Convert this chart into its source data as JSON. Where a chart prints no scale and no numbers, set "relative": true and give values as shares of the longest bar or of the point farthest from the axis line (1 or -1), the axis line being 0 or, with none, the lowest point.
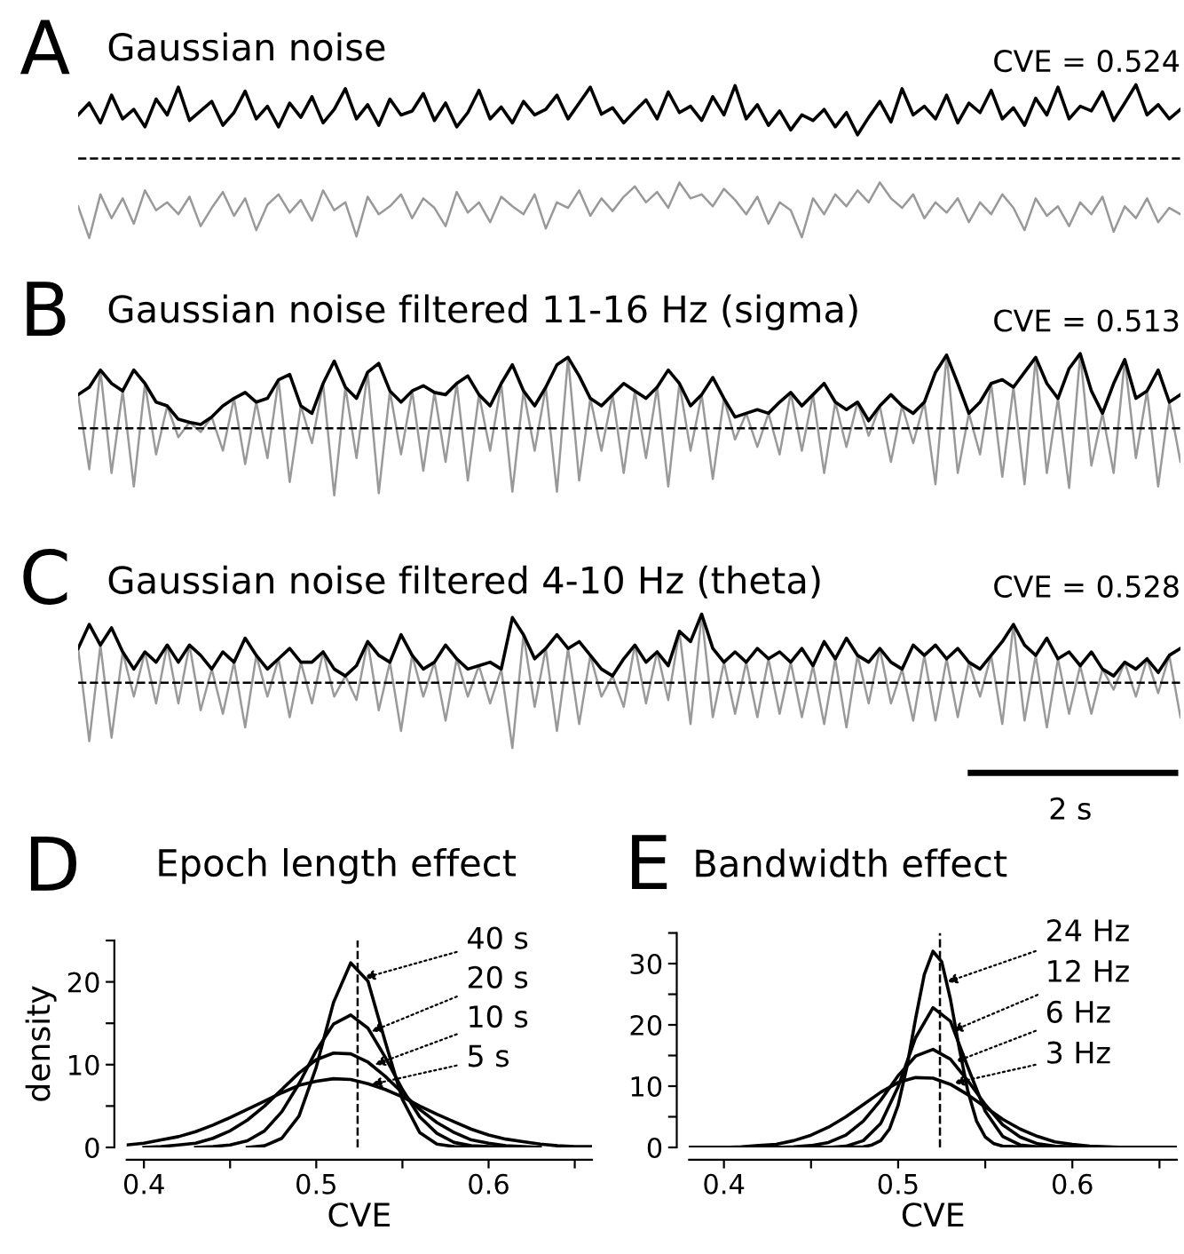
{
  "chart_data": [
    {
      "type": "line",
      "relative": true,
      "title": "Gaussian noise",
      "annotations": [
        "A",
        "CVE = 0.524"
      ],
      "categories": [
        null,
        null,
        null,
        null,
        null,
        null,
        null,
        null,
        null,
        null,
        null,
        null,
        null,
        null,
        null,
        null,
        null,
        null,
        null,
        null,
        null,
        null,
        null,
        null,
        null,
        null,
        null,
        null,
        null,
        null,
        null,
        null,
        null,
        null,
        null,
        null,
        null,
        null,
        null,
        null,
        null,
        null,
        null,
        null,
        null,
        null,
        null,
        null,
        null,
        null,
        null,
        null,
        null,
        null,
        null,
        null,
        null,
        null,
        null,
        null,
        null,
        null,
        null,
        null,
        null,
        null,
        null,
        null,
        null,
        null,
        null,
        null,
        null,
        null,
        null,
        null,
        null,
        null,
        null,
        null,
        null,
        null,
        null,
        null,
        null,
        null,
        null,
        null,
        null,
        null,
        null,
        null,
        null,
        null,
        null,
        null,
        null,
        null,
        null,
        null
      ],
      "ref_lines": [
        {
          "axis": "y",
          "value": 0,
          "line_style": "dashed",
          "color": "#000000"
        }
      ],
      "series": [
        {
          "color": "#999999",
          "values": [
            -0.6,
            -1.0,
            -0.45,
            -0.75,
            -0.5,
            -0.82,
            -0.4,
            -0.65,
            -0.55,
            -0.7,
            -0.48,
            -0.85,
            -0.62,
            -0.42,
            -0.72,
            -0.5,
            -0.9,
            -0.58,
            -0.45,
            -0.68,
            -0.52,
            -0.78,
            -0.4,
            -0.65,
            -0.55,
            -0.98,
            -0.48,
            -0.7,
            -0.6,
            -0.45,
            -0.75,
            -0.5,
            -0.62,
            -0.85,
            -0.42,
            -0.68,
            -0.55,
            -0.8,
            -0.48,
            -0.6,
            -0.7,
            -0.45,
            -0.88,
            -0.55,
            -0.62,
            -0.4,
            -0.72,
            -0.5,
            -0.66,
            -0.48,
            -0.35,
            -0.55,
            -0.42,
            -0.62,
            -0.3,
            -0.5,
            -0.45,
            -0.6,
            -0.38,
            -0.52,
            -0.7,
            -0.48,
            -0.82,
            -0.55,
            -0.65,
            -0.99,
            -0.5,
            -0.7,
            -0.45,
            -0.6,
            -0.4,
            -0.55,
            -0.3,
            -0.5,
            -0.62,
            -0.45,
            -0.75,
            -0.55,
            -0.68,
            -0.5,
            -0.8,
            -0.55,
            -0.7,
            -0.45,
            -0.62,
            -0.9,
            -0.5,
            -0.72,
            -0.6,
            -0.85,
            -0.55,
            -0.7,
            -0.48,
            -0.92,
            -0.6,
            -0.75,
            -0.5,
            -0.8,
            -0.62,
            -0.7
          ]
        },
        {
          "color": "#000000",
          "values": [
            0.55,
            0.7,
            0.45,
            0.8,
            0.5,
            0.62,
            0.4,
            0.75,
            0.55,
            0.9,
            0.48,
            0.6,
            0.72,
            0.42,
            0.58,
            0.85,
            0.5,
            0.66,
            0.4,
            0.7,
            0.52,
            0.78,
            0.45,
            0.62,
            0.88,
            0.5,
            0.68,
            0.42,
            0.75,
            0.55,
            0.6,
            0.82,
            0.48,
            0.7,
            0.4,
            0.58,
            0.86,
            0.5,
            0.65,
            0.45,
            0.72,
            0.55,
            0.62,
            0.8,
            0.5,
            0.7,
            0.9,
            0.56,
            0.64,
            0.45,
            0.6,
            0.74,
            0.5,
            0.84,
            0.58,
            0.66,
            0.48,
            0.78,
            0.55,
            0.92,
            0.5,
            0.68,
            0.42,
            0.6,
            0.36,
            0.55,
            0.48,
            0.62,
            0.4,
            0.58,
            0.3,
            0.52,
            0.72,
            0.46,
            0.88,
            0.55,
            0.66,
            0.5,
            0.8,
            0.45,
            0.7,
            0.58,
            0.86,
            0.5,
            0.64,
            0.42,
            0.76,
            0.55,
            0.9,
            0.5,
            0.66,
            0.6,
            0.84,
            0.48,
            0.7,
            0.93,
            0.55,
            0.68,
            0.5,
            0.62
          ]
        }
      ]
    },
    {
      "type": "line",
      "relative": true,
      "title": "Gaussian noise filtered 11-16 Hz (sigma)",
      "annotations": [
        "B",
        "CVE = 0.513"
      ],
      "categories": [
        null,
        null,
        null,
        null,
        null,
        null,
        null,
        null,
        null,
        null,
        null,
        null,
        null,
        null,
        null,
        null,
        null,
        null,
        null,
        null,
        null,
        null,
        null,
        null,
        null,
        null,
        null,
        null,
        null,
        null,
        null,
        null,
        null,
        null,
        null,
        null,
        null,
        null,
        null,
        null,
        null,
        null,
        null,
        null,
        null,
        null,
        null,
        null,
        null,
        null,
        null,
        null,
        null,
        null,
        null,
        null,
        null,
        null,
        null,
        null,
        null,
        null,
        null,
        null,
        null,
        null,
        null,
        null,
        null,
        null,
        null,
        null,
        null,
        null,
        null,
        null,
        null,
        null,
        null,
        null,
        null,
        null,
        null,
        null,
        null,
        null,
        null,
        null,
        null,
        null,
        null,
        null,
        null,
        null,
        null,
        null,
        null,
        null,
        null,
        null
      ],
      "ref_lines": [
        {
          "axis": "y",
          "value": 0,
          "line_style": "dashed",
          "color": "#000000"
        }
      ],
      "series": [
        {
          "color": "#999999",
          "values": [
            0.45,
            -0.55,
            0.78,
            -0.6,
            0.5,
            -0.78,
            0.6,
            -0.35,
            0.3,
            -0.12,
            0.08,
            -0.05,
            0.15,
            -0.3,
            0.4,
            -0.48,
            0.35,
            -0.4,
            0.65,
            -0.72,
            0.3,
            -0.2,
            0.6,
            -0.9,
            0.55,
            -0.4,
            0.75,
            -0.87,
            0.5,
            -0.35,
            0.5,
            -0.57,
            0.48,
            -0.45,
            0.6,
            -0.7,
            0.45,
            -0.3,
            0.6,
            -0.85,
            0.5,
            -0.3,
            0.55,
            -0.85,
            0.95,
            -0.7,
            0.4,
            -0.3,
            0.45,
            -0.6,
            0.5,
            -0.4,
            0.55,
            -0.78,
            0.6,
            -0.3,
            0.45,
            -0.68,
            0.4,
            -0.15,
            0.2,
            -0.25,
            0.2,
            -0.35,
            0.48,
            -0.3,
            0.45,
            -0.6,
            0.35,
            -0.25,
            0.35,
            -0.1,
            0.3,
            -0.45,
            0.3,
            -0.2,
            0.35,
            -0.75,
            0.98,
            -0.6,
            0.2,
            -0.35,
            0.6,
            -0.65,
            0.55,
            -0.75,
            0.95,
            -0.6,
            0.4,
            -0.8,
            1.0,
            -0.5,
            0.2,
            -0.6,
            0.92,
            -0.4,
            0.5,
            -0.78,
            0.35,
            -0.45
          ]
        },
        {
          "color": "#000000",
          "values": [
            0.45,
            0.55,
            0.78,
            0.6,
            0.5,
            0.78,
            0.6,
            0.35,
            0.3,
            0.12,
            0.08,
            0.05,
            0.15,
            0.3,
            0.4,
            0.48,
            0.35,
            0.4,
            0.65,
            0.72,
            0.3,
            0.2,
            0.6,
            0.9,
            0.55,
            0.4,
            0.75,
            0.87,
            0.5,
            0.35,
            0.5,
            0.57,
            0.48,
            0.45,
            0.6,
            0.7,
            0.45,
            0.3,
            0.6,
            0.85,
            0.5,
            0.3,
            0.55,
            0.85,
            0.95,
            0.7,
            0.4,
            0.3,
            0.45,
            0.6,
            0.5,
            0.4,
            0.55,
            0.78,
            0.6,
            0.3,
            0.45,
            0.68,
            0.4,
            0.15,
            0.2,
            0.25,
            0.2,
            0.35,
            0.48,
            0.3,
            0.45,
            0.6,
            0.35,
            0.25,
            0.35,
            0.1,
            0.3,
            0.45,
            0.3,
            0.2,
            0.35,
            0.75,
            0.98,
            0.6,
            0.2,
            0.35,
            0.6,
            0.65,
            0.55,
            0.75,
            0.95,
            0.6,
            0.4,
            0.8,
            1.0,
            0.5,
            0.2,
            0.6,
            0.92,
            0.4,
            0.5,
            0.78,
            0.35,
            0.45
          ]
        }
      ]
    },
    {
      "type": "line",
      "relative": true,
      "title": "Gaussian noise filtered 4-10 Hz (theta)",
      "annotations": [
        "C",
        "CVE = 0.528",
        "2 s"
      ],
      "categories": [
        null,
        null,
        null,
        null,
        null,
        null,
        null,
        null,
        null,
        null,
        null,
        null,
        null,
        null,
        null,
        null,
        null,
        null,
        null,
        null,
        null,
        null,
        null,
        null,
        null,
        null,
        null,
        null,
        null,
        null,
        null,
        null,
        null,
        null,
        null,
        null,
        null,
        null,
        null,
        null,
        null,
        null,
        null,
        null,
        null,
        null,
        null,
        null,
        null,
        null,
        null,
        null,
        null,
        null,
        null,
        null,
        null,
        null,
        null,
        null,
        null,
        null,
        null,
        null,
        null,
        null,
        null,
        null,
        null,
        null,
        null,
        null,
        null,
        null,
        null,
        null,
        null,
        null,
        null,
        null,
        null,
        null,
        null,
        null,
        null,
        null,
        null,
        null,
        null,
        null,
        null,
        null,
        null,
        null,
        null,
        null,
        null,
        null,
        null,
        null
      ],
      "ref_lines": [
        {
          "axis": "y",
          "value": 0,
          "line_style": "dashed",
          "color": "#000000"
        }
      ],
      "series": [
        {
          "color": "#999999",
          "values": [
            0.5,
            -0.85,
            0.55,
            -0.8,
            0.45,
            -0.2,
            0.45,
            -0.3,
            0.55,
            -0.3,
            0.55,
            -0.4,
            0.2,
            -0.45,
            0.3,
            -0.65,
            0.4,
            -0.2,
            0.35,
            -0.5,
            0.3,
            -0.3,
            0.45,
            -0.2,
            0.1,
            -0.25,
            0.6,
            -0.4,
            0.3,
            -0.7,
            0.4,
            -0.2,
            0.3,
            -0.55,
            0.35,
            -0.2,
            0.25,
            -0.3,
            0.2,
            -0.95,
            0.7,
            -0.35,
            0.5,
            -0.7,
            0.5,
            -0.6,
            0.4,
            -0.2,
            0.1,
            -0.35,
            0.55,
            -0.3,
            0.45,
            -0.25,
            0.75,
            -0.6,
            1.0,
            -0.5,
            0.3,
            -0.45,
            0.3,
            -0.5,
            0.35,
            -0.45,
            0.3,
            -0.5,
            0.25,
            -0.6,
            0.35,
            -0.65,
            0.4,
            -0.3,
            0.5,
            -0.3,
            0.2,
            -0.55,
            0.4,
            -0.55,
            0.35,
            -0.5,
            0.3,
            -0.2,
            0.4,
            -0.6,
            0.85,
            -0.55,
            0.4,
            -0.65,
            0.35,
            -0.45,
            0.25,
            -0.45,
            0.2,
            -0.1,
            0.3,
            -0.2,
            0.35,
            -0.15,
            0.4,
            -0.5
          ]
        },
        {
          "color": "#000000",
          "values": [
            0.5,
            0.85,
            0.55,
            0.8,
            0.45,
            0.2,
            0.45,
            0.3,
            0.55,
            0.3,
            0.55,
            0.4,
            0.2,
            0.45,
            0.3,
            0.65,
            0.4,
            0.2,
            0.35,
            0.5,
            0.3,
            0.3,
            0.45,
            0.2,
            0.1,
            0.25,
            0.6,
            0.4,
            0.3,
            0.7,
            0.4,
            0.2,
            0.3,
            0.55,
            0.35,
            0.2,
            0.25,
            0.3,
            0.2,
            0.95,
            0.7,
            0.35,
            0.5,
            0.7,
            0.5,
            0.6,
            0.4,
            0.2,
            0.1,
            0.35,
            0.55,
            0.3,
            0.45,
            0.25,
            0.75,
            0.6,
            1.0,
            0.5,
            0.3,
            0.45,
            0.3,
            0.5,
            0.35,
            0.45,
            0.3,
            0.5,
            0.25,
            0.6,
            0.35,
            0.65,
            0.4,
            0.3,
            0.5,
            0.3,
            0.2,
            0.55,
            0.4,
            0.55,
            0.35,
            0.5,
            0.3,
            0.2,
            0.4,
            0.6,
            0.85,
            0.55,
            0.4,
            0.65,
            0.35,
            0.45,
            0.25,
            0.45,
            0.2,
            0.1,
            0.3,
            0.2,
            0.35,
            0.15,
            0.4,
            0.5
          ]
        }
      ]
    },
    {
      "type": "line",
      "title": "Epoch length effect",
      "xlabel": "CVE",
      "ylabel": "density",
      "annotations": [
        "D",
        {
          "text": "40 s",
          "x": 0.528,
          "y": 20.5
        },
        {
          "text": "20 s",
          "x": 0.532,
          "y": 14
        },
        {
          "text": "10 s",
          "x": 0.534,
          "y": 10
        },
        {
          "text": "5 s",
          "x": 0.532,
          "y": 7.6
        }
      ],
      "xlim": [
        0.39,
        0.66
      ],
      "ylim": [
        0,
        25
      ],
      "xticks": [
        0.4,
        {
          "value": 0.45,
          "label": null
        },
        0.5,
        {
          "value": 0.55,
          "label": null
        },
        0.6,
        {
          "value": 0.65,
          "label": null
        }
      ],
      "yticks": [
        0,
        {
          "value": 5,
          "label": null
        },
        10,
        {
          "value": 15,
          "label": null
        },
        20,
        {
          "value": 25,
          "label": null
        }
      ],
      "ref_lines": [
        {
          "axis": "x",
          "value": 0.524,
          "line_style": "dashed",
          "color": "#000000"
        }
      ],
      "x": [
        0.39,
        0.4,
        0.41,
        0.42,
        0.43,
        0.44,
        0.45,
        0.46,
        0.47,
        0.48,
        0.49,
        0.5,
        0.51,
        0.52,
        0.53,
        0.54,
        0.55,
        0.56,
        0.57,
        0.58,
        0.59,
        0.6,
        0.61,
        0.62,
        0.63,
        0.64,
        0.65,
        0.66
      ],
      "series": [
        {
          "color": "#000000",
          "x": [
            0.46,
            0.47,
            0.48,
            0.49,
            0.5,
            0.51,
            0.52,
            0.53,
            0.54,
            0.55,
            0.56,
            0.57,
            0.58,
            0.59
          ],
          "values": [
            0,
            0.2,
            1.1,
            3.8,
            9.7,
            17.5,
            22.3,
            20.1,
            12.8,
            5.8,
            1.8,
            0.4,
            0.1,
            0
          ]
        },
        {
          "color": "#000000",
          "x": [
            0.43,
            0.44,
            0.45,
            0.46,
            0.47,
            0.48,
            0.49,
            0.5,
            0.51,
            0.52,
            0.53,
            0.54,
            0.55,
            0.56,
            0.57,
            0.58,
            0.59,
            0.6,
            0.61
          ],
          "values": [
            0,
            0.1,
            0.3,
            0.8,
            2.0,
            4.3,
            7.7,
            11.7,
            14.9,
            16,
            14.4,
            10.9,
            7.0,
            3.7,
            1.7,
            0.6,
            0.2,
            0.1,
            0
          ]
        },
        {
          "color": "#000000",
          "x": [
            0.4,
            0.41,
            0.42,
            0.43,
            0.44,
            0.45,
            0.46,
            0.47,
            0.48,
            0.49,
            0.5,
            0.51,
            0.52,
            0.53,
            0.54,
            0.55,
            0.56,
            0.57,
            0.58,
            0.59,
            0.6,
            0.61,
            0.62,
            0.63
          ],
          "values": [
            0,
            0.1,
            0.3,
            0.5,
            1.1,
            2.0,
            3.3,
            5.0,
            7.0,
            9.0,
            10.6,
            11.4,
            11.3,
            10.3,
            8.6,
            6.6,
            4.6,
            3.0,
            1.8,
            0.9,
            0.5,
            0.2,
            0.1,
            0
          ]
        },
        {
          "color": "#000000",
          "values": [
            0.3,
            0.5,
            0.9,
            1.3,
            1.9,
            2.7,
            3.6,
            4.6,
            5.6,
            6.6,
            7.5,
            8.0,
            8.3,
            8.2,
            7.7,
            7.0,
            6.1,
            5.0,
            4.0,
            3.1,
            2.2,
            1.5,
            1.0,
            0.7,
            0.4,
            0.2,
            0.1,
            0.1
          ]
        }
      ]
    },
    {
      "type": "line",
      "title": "Bandwidth effect",
      "xlabel": "CVE",
      "annotations": [
        "E",
        {
          "text": "24 Hz",
          "x": 0.528,
          "y": 27
        },
        {
          "text": "12 Hz",
          "x": 0.531,
          "y": 19
        },
        {
          "text": "6 Hz",
          "x": 0.533,
          "y": 14
        },
        {
          "text": "3 Hz",
          "x": 0.532,
          "y": 10.5
        }
      ],
      "xlim": [
        0.38,
        0.66
      ],
      "ylim": [
        0,
        35
      ],
      "xticks": [
        0.4,
        {
          "value": 0.45,
          "label": null
        },
        0.5,
        {
          "value": 0.55,
          "label": null
        },
        0.6,
        {
          "value": 0.65,
          "label": null
        }
      ],
      "yticks": [
        0,
        {
          "value": 5,
          "label": null
        },
        10,
        {
          "value": 15,
          "label": null
        },
        20,
        {
          "value": 25,
          "label": null
        },
        30,
        {
          "value": 35,
          "label": null
        }
      ],
      "ref_lines": [
        {
          "axis": "x",
          "value": 0.524,
          "line_style": "dashed",
          "color": "#000000"
        }
      ],
      "x": [
        0.38,
        0.39,
        0.4,
        0.41,
        0.42,
        0.43,
        0.44,
        0.45,
        0.46,
        0.47,
        0.48,
        0.49,
        0.5,
        0.51,
        0.52,
        0.53,
        0.54,
        0.55,
        0.56,
        0.57,
        0.58,
        0.59,
        0.6,
        0.61,
        0.62,
        0.63,
        0.64,
        0.65,
        0.66
      ],
      "series": [
        {
          "color": "#000000",
          "x": [
            0.38,
            0.4,
            0.42,
            0.44,
            0.46,
            0.48,
            0.485,
            0.49,
            0.495,
            0.5,
            0.505,
            0.51,
            0.515,
            0.52,
            0.525,
            0.53,
            0.535,
            0.54,
            0.545,
            0.55,
            0.555,
            0.56,
            0.58,
            0.6,
            0.62,
            0.64,
            0.66
          ],
          "values": [
            0,
            0,
            0,
            0,
            0,
            0.1,
            0.4,
            1.1,
            3.0,
            6.9,
            13.1,
            21.0,
            28.2,
            32.0,
            30.3,
            24.2,
            16.3,
            9.2,
            4.3,
            1.7,
            0.6,
            0.2,
            0,
            0,
            0,
            0,
            0
          ]
        },
        {
          "color": "#000000",
          "values": [
            0,
            0,
            0,
            0,
            0,
            0,
            0,
            0,
            0,
            0.2,
            1.1,
            3.9,
            9.9,
            17.9,
            22.8,
            20.6,
            13.1,
            5.9,
            1.8,
            0.4,
            0.1,
            0,
            0,
            0,
            0,
            0,
            0,
            0,
            0
          ]
        },
        {
          "color": "#000000",
          "values": [
            0,
            0,
            0,
            0,
            0,
            0,
            0.1,
            0.3,
            0.8,
            2.0,
            4.3,
            7.7,
            11.7,
            14.9,
            16,
            14.4,
            10.9,
            7.0,
            3.7,
            1.7,
            0.6,
            0.2,
            0.1,
            0,
            0,
            0,
            0,
            0,
            0
          ]
        },
        {
          "color": "#000000",
          "values": [
            0,
            0,
            0,
            0.1,
            0.3,
            0.5,
            1.1,
            2.0,
            3.3,
            5.0,
            7.0,
            9.0,
            10.6,
            11.4,
            11.3,
            10.3,
            8.6,
            6.6,
            4.6,
            3.0,
            1.8,
            0.9,
            0.5,
            0.2,
            0.1,
            0,
            0,
            0,
            0
          ]
        }
      ]
    }
  ]
}
